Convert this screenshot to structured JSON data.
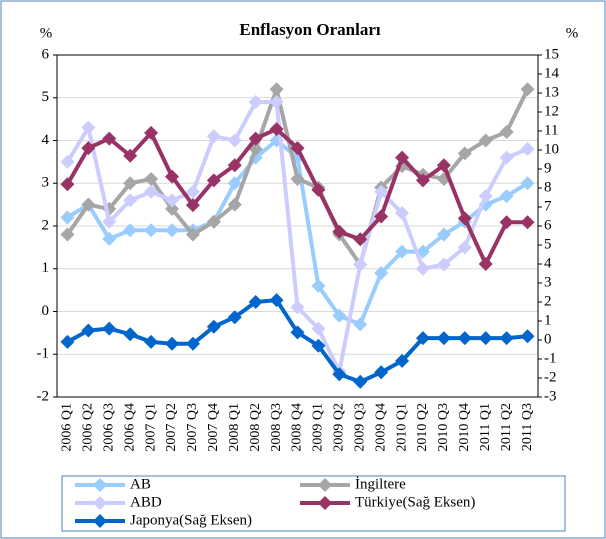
{
  "chart_data": {
    "type": "line",
    "title": "Enflasyon Oranları",
    "ylabel": "%",
    "y2label": "%",
    "categories": [
      "2006 Q1",
      "2006 Q2",
      "2006 Q3",
      "2006 Q4",
      "2007 Q1",
      "2007 Q2",
      "2007 Q3",
      "2007 Q4",
      "2008 Q1",
      "2008 Q2",
      "2008 Q3",
      "2008 Q4",
      "2009 Q1",
      "2009 Q2",
      "2009 Q3",
      "2009 Q4",
      "2010 Q1",
      "2010 Q2",
      "2010 Q3",
      "2010 Q4",
      "2011 Q1",
      "2011 Q2",
      "2011 Q3"
    ],
    "series": [
      {
        "name": "AB",
        "color": "#99ccff",
        "values": [
          2.2,
          2.5,
          1.7,
          1.9,
          1.9,
          1.9,
          1.9,
          2.1,
          3.0,
          3.6,
          4.0,
          3.6,
          0.6,
          -0.1,
          -0.3,
          0.9,
          1.4,
          1.4,
          1.8,
          2.1,
          2.5,
          2.7,
          3.0
        ]
      },
      {
        "name": "İngiltere",
        "color": "#a6a6a6",
        "values": [
          1.8,
          2.5,
          2.4,
          3.0,
          3.1,
          2.4,
          1.8,
          2.1,
          2.5,
          3.8,
          5.2,
          3.1,
          2.9,
          1.8,
          1.1,
          2.9,
          3.4,
          3.2,
          3.1,
          3.7,
          4.0,
          4.2,
          5.2
        ]
      },
      {
        "name": "ABD",
        "color": "#ccccff",
        "values": [
          3.5,
          4.3,
          2.1,
          2.6,
          2.8,
          2.6,
          2.8,
          4.1,
          4.0,
          4.9,
          4.9,
          0.1,
          -0.4,
          -1.4,
          1.1,
          2.8,
          2.3,
          1.0,
          1.1,
          1.5,
          2.7,
          3.6,
          3.8
        ]
      },
      {
        "name": "Türkiye(Sağ Eksen)",
        "color": "#993366",
        "axis": "y2",
        "values": [
          8.2,
          10.1,
          10.6,
          9.7,
          10.9,
          8.6,
          7.1,
          8.4,
          9.2,
          10.6,
          11.1,
          10.1,
          7.9,
          5.7,
          5.3,
          6.5,
          9.6,
          8.4,
          9.2,
          6.4,
          4.0,
          6.2,
          6.2
        ]
      },
      {
        "name": "Japonya(Sağ Eksen)",
        "color": "#0066cc",
        "axis": "y2",
        "values": [
          -0.1,
          0.5,
          0.6,
          0.3,
          -0.1,
          -0.2,
          -0.2,
          0.7,
          1.2,
          2.0,
          2.1,
          0.4,
          -0.3,
          -1.8,
          -2.2,
          -1.7,
          -1.1,
          0.1,
          0.1,
          0.1,
          0.1,
          0.1,
          0.2
        ]
      }
    ],
    "ylim": [
      -2,
      6
    ],
    "yticks": [
      -2,
      -1,
      0,
      1,
      2,
      3,
      4,
      5,
      6
    ],
    "y2lim": [
      -3,
      15
    ],
    "y2ticks": [
      -3,
      -2,
      -1,
      0,
      1,
      2,
      3,
      4,
      5,
      6,
      7,
      8,
      9,
      10,
      11,
      12,
      13,
      14,
      15
    ],
    "grid": true,
    "legend": "bottom"
  }
}
